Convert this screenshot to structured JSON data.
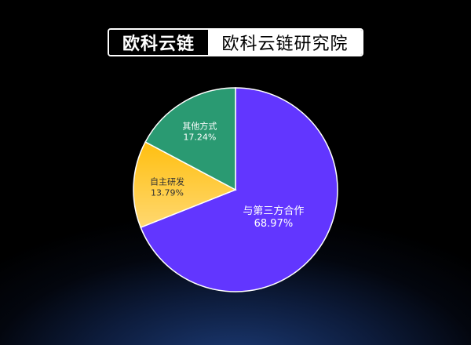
{
  "header": {
    "brand": "欧科云链",
    "institute": "欧科云链研究院"
  },
  "chart_data": {
    "type": "pie",
    "slices": [
      {
        "label": "与第三方合作",
        "value": 68.97,
        "display": "68.97%",
        "color": "#6236ff"
      },
      {
        "label": "自主研发",
        "value": 13.79,
        "display": "13.79%",
        "color": "#ffc21a"
      },
      {
        "label": "其他方式",
        "value": 17.24,
        "display": "17.24%",
        "color": "#2a9a72"
      }
    ],
    "start": "top",
    "direction": "clockwise"
  }
}
